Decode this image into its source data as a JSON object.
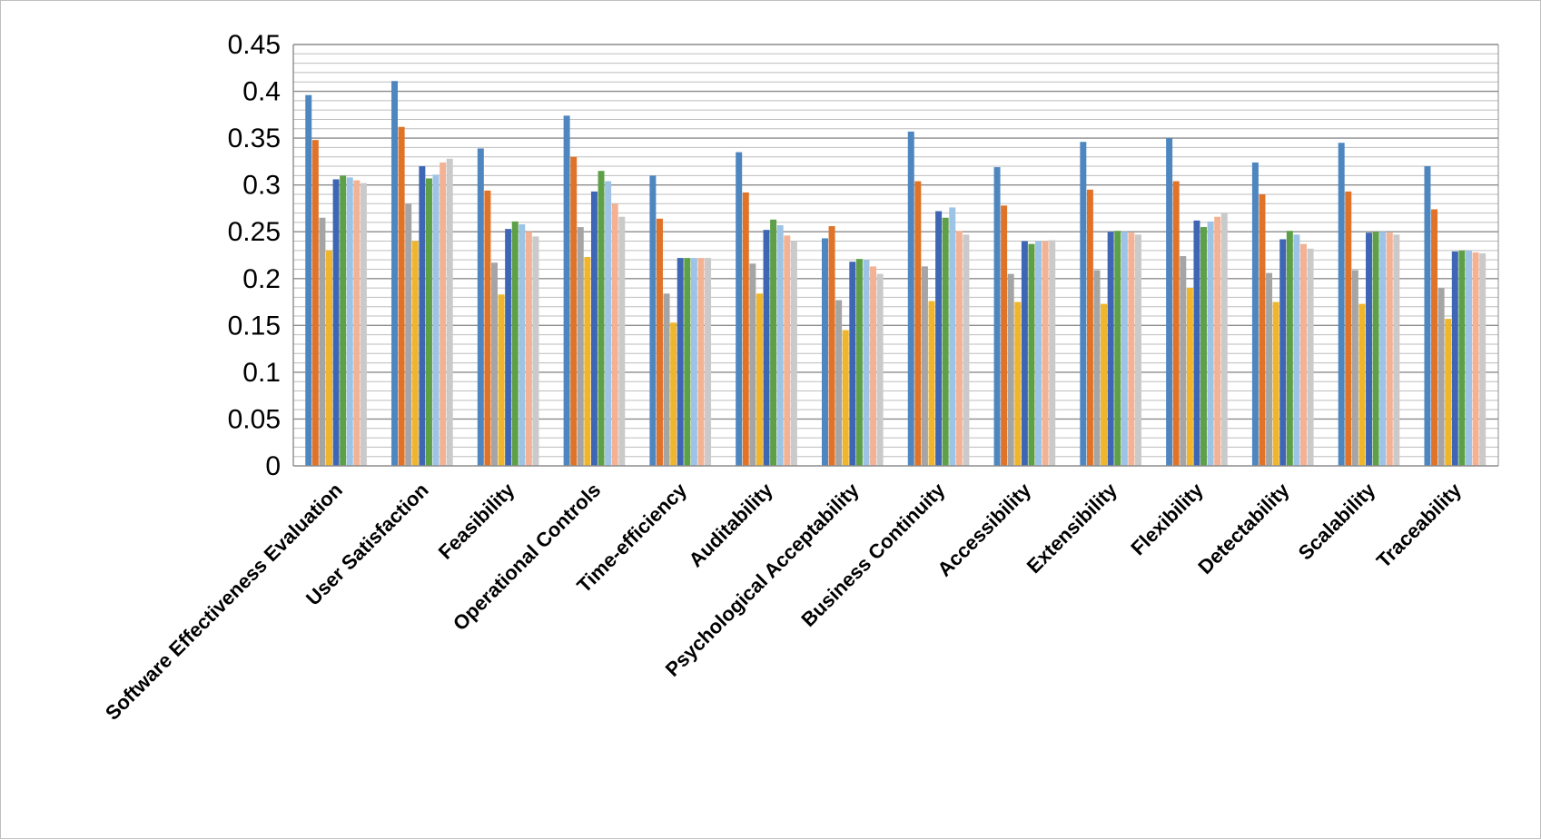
{
  "chart_data": {
    "type": "bar",
    "title": "",
    "xlabel": "",
    "ylabel": "",
    "ylim": [
      0,
      0.45
    ],
    "y_ticks": [
      "0",
      "0.05",
      "0.1",
      "0.15",
      "0.2",
      "0.25",
      "0.3",
      "0.35",
      "0.4",
      "0.45"
    ],
    "grid": true,
    "legend": "none",
    "categories": [
      "Software Effectiveness Evaluation",
      "User Satisfaction",
      "Feasibility",
      "Operational Controls",
      "Time-efficiency",
      "Auditability",
      "Psychological Acceptability",
      "Business Continuity",
      "Accessibility",
      "Extensibility",
      "Flexibility",
      "Detectability",
      "Scalability",
      "Traceability"
    ],
    "series": [
      {
        "color": "#4e86c0",
        "values": [
          0.396,
          0.411,
          0.339,
          0.374,
          0.31,
          0.335,
          0.243,
          0.357,
          0.319,
          0.346,
          0.35,
          0.324,
          0.345,
          0.32
        ]
      },
      {
        "color": "#e07328",
        "values": [
          0.348,
          0.362,
          0.294,
          0.33,
          0.264,
          0.292,
          0.256,
          0.304,
          0.278,
          0.295,
          0.304,
          0.29,
          0.293,
          0.274
        ]
      },
      {
        "color": "#a5a5a5",
        "values": [
          0.265,
          0.28,
          0.217,
          0.255,
          0.184,
          0.216,
          0.177,
          0.213,
          0.205,
          0.209,
          0.224,
          0.206,
          0.209,
          0.19
        ]
      },
      {
        "color": "#f0b62b",
        "values": [
          0.23,
          0.24,
          0.183,
          0.223,
          0.153,
          0.184,
          0.145,
          0.176,
          0.175,
          0.173,
          0.19,
          0.175,
          0.173,
          0.157
        ]
      },
      {
        "color": "#3f66b4",
        "values": [
          0.306,
          0.32,
          0.253,
          0.293,
          0.222,
          0.252,
          0.218,
          0.272,
          0.24,
          0.25,
          0.262,
          0.242,
          0.249,
          0.229
        ]
      },
      {
        "color": "#5ea048",
        "values": [
          0.31,
          0.307,
          0.261,
          0.315,
          0.222,
          0.263,
          0.221,
          0.265,
          0.237,
          0.251,
          0.255,
          0.251,
          0.25,
          0.23
        ]
      },
      {
        "color": "#9dc3e6",
        "values": [
          0.308,
          0.311,
          0.258,
          0.304,
          0.222,
          0.257,
          0.22,
          0.276,
          0.24,
          0.25,
          0.261,
          0.247,
          0.25,
          0.23
        ]
      },
      {
        "color": "#f4b294",
        "values": [
          0.305,
          0.324,
          0.25,
          0.28,
          0.222,
          0.246,
          0.213,
          0.251,
          0.24,
          0.249,
          0.266,
          0.237,
          0.249,
          0.228
        ]
      },
      {
        "color": "#cacaca",
        "values": [
          0.302,
          0.328,
          0.245,
          0.266,
          0.222,
          0.24,
          0.205,
          0.247,
          0.241,
          0.247,
          0.27,
          0.232,
          0.247,
          0.227
        ]
      }
    ]
  }
}
